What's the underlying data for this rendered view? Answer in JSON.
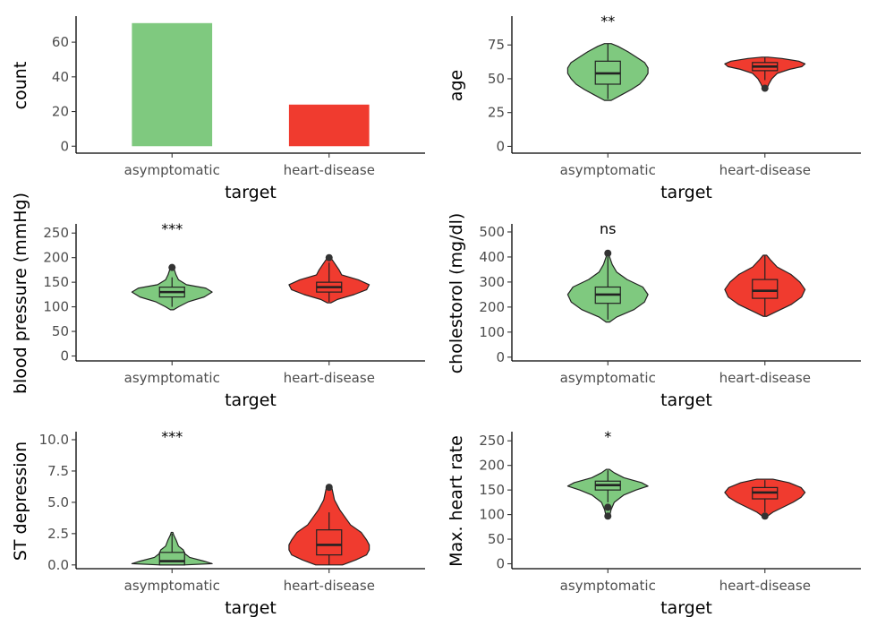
{
  "colors": {
    "asymptomatic": "#7fc97f",
    "heart-disease": "#f03b2f",
    "outline": "#222222"
  },
  "chart_data": [
    {
      "id": "count",
      "type": "bar",
      "xlabel": "target",
      "ylabel": "count",
      "categories": [
        "asymptomatic",
        "heart-disease"
      ],
      "values": [
        71,
        24
      ],
      "ylim": [
        -4,
        74
      ],
      "yticks": [
        0,
        20,
        40,
        60
      ],
      "ytick_labels": [
        "0",
        "20",
        "40",
        "60"
      ],
      "significance": ""
    },
    {
      "id": "age",
      "type": "violin",
      "xlabel": "target",
      "ylabel": "age",
      "categories": [
        "asymptomatic",
        "heart-disease"
      ],
      "ylim": [
        -5,
        95
      ],
      "yticks": [
        0,
        25,
        50,
        75
      ],
      "ytick_labels": [
        "0",
        "25",
        "50",
        "75"
      ],
      "significance": "**",
      "groups": [
        {
          "name": "asymptomatic",
          "q1": 46,
          "median": 54,
          "q3": 63,
          "whisker_low": 35,
          "whisker_high": 76,
          "outliers": [],
          "violin": [
            [
              34,
              0.02
            ],
            [
              38,
              0.08
            ],
            [
              42,
              0.14
            ],
            [
              46,
              0.19
            ],
            [
              50,
              0.22
            ],
            [
              54,
              0.24
            ],
            [
              58,
              0.24
            ],
            [
              62,
              0.22
            ],
            [
              66,
              0.17
            ],
            [
              70,
              0.12
            ],
            [
              74,
              0.06
            ],
            [
              76,
              0.02
            ]
          ]
        },
        {
          "name": "heart-disease",
          "q1": 56,
          "median": 59,
          "q3": 62,
          "whisker_low": 49,
          "whisker_high": 66,
          "outliers": [
            43
          ],
          "violin": [
            [
              42,
              0.02
            ],
            [
              46,
              0.05
            ],
            [
              50,
              0.09
            ],
            [
              54,
              0.16
            ],
            [
              57,
              0.32
            ],
            [
              59,
              0.48
            ],
            [
              61,
              0.52
            ],
            [
              63,
              0.44
            ],
            [
              65,
              0.22
            ],
            [
              66,
              0.04
            ]
          ]
        }
      ]
    },
    {
      "id": "blood-pressure",
      "type": "violin",
      "xlabel": "target",
      "ylabel": "blood pressure (mmHg)",
      "categories": [
        "asymptomatic",
        "heart-disease"
      ],
      "ylim": [
        -10,
        265
      ],
      "yticks": [
        0,
        50,
        100,
        150,
        200,
        250
      ],
      "ytick_labels": [
        "0",
        "50",
        "100",
        "150",
        "200",
        "250"
      ],
      "significance": "***",
      "groups": [
        {
          "name": "asymptomatic",
          "q1": 120,
          "median": 130,
          "q3": 140,
          "whisker_low": 100,
          "whisker_high": 160,
          "outliers": [
            180
          ],
          "violin": [
            [
              94,
              0.02
            ],
            [
              100,
              0.08
            ],
            [
              110,
              0.2
            ],
            [
              120,
              0.4
            ],
            [
              130,
              0.5
            ],
            [
              138,
              0.42
            ],
            [
              145,
              0.18
            ],
            [
              155,
              0.08
            ],
            [
              165,
              0.05
            ],
            [
              175,
              0.03
            ],
            [
              180,
              0.01
            ]
          ]
        },
        {
          "name": "heart-disease",
          "q1": 130,
          "median": 140,
          "q3": 150,
          "whisker_low": 110,
          "whisker_high": 190,
          "outliers": [
            200
          ],
          "violin": [
            [
              108,
              0.02
            ],
            [
              115,
              0.1
            ],
            [
              125,
              0.3
            ],
            [
              135,
              0.45
            ],
            [
              145,
              0.48
            ],
            [
              155,
              0.35
            ],
            [
              165,
              0.15
            ],
            [
              175,
              0.12
            ],
            [
              185,
              0.08
            ],
            [
              195,
              0.04
            ],
            [
              200,
              0.01
            ]
          ]
        }
      ]
    },
    {
      "id": "cholesterol",
      "type": "violin",
      "xlabel": "target",
      "ylabel": "cholestorol (mg/dl)",
      "categories": [
        "asymptomatic",
        "heart-disease"
      ],
      "ylim": [
        -15,
        525
      ],
      "yticks": [
        0,
        100,
        200,
        300,
        400,
        500
      ],
      "ytick_labels": [
        "0",
        "100",
        "200",
        "300",
        "400",
        "500"
      ],
      "significance": "ns",
      "groups": [
        {
          "name": "asymptomatic",
          "q1": 215,
          "median": 250,
          "q3": 280,
          "whisker_low": 150,
          "whisker_high": 400,
          "outliers": [
            415
          ],
          "violin": [
            [
              140,
              0.02
            ],
            [
              160,
              0.1
            ],
            [
              190,
              0.3
            ],
            [
              220,
              0.42
            ],
            [
              250,
              0.46
            ],
            [
              280,
              0.4
            ],
            [
              310,
              0.22
            ],
            [
              340,
              0.1
            ],
            [
              370,
              0.05
            ],
            [
              400,
              0.02
            ],
            [
              418,
              0.01
            ]
          ]
        },
        {
          "name": "heart-disease",
          "q1": 235,
          "median": 265,
          "q3": 310,
          "whisker_low": 165,
          "whisker_high": 405,
          "outliers": [],
          "violin": [
            [
              163,
              0.02
            ],
            [
              180,
              0.12
            ],
            [
              210,
              0.3
            ],
            [
              240,
              0.42
            ],
            [
              270,
              0.46
            ],
            [
              300,
              0.4
            ],
            [
              330,
              0.3
            ],
            [
              360,
              0.14
            ],
            [
              390,
              0.06
            ],
            [
              407,
              0.02
            ]
          ]
        }
      ]
    },
    {
      "id": "st-depression",
      "type": "violin",
      "xlabel": "target",
      "ylabel": "ST depression",
      "categories": [
        "asymptomatic",
        "heart-disease"
      ],
      "ylim": [
        -0.3,
        10.5
      ],
      "yticks": [
        0,
        2.5,
        5,
        7.5,
        10
      ],
      "ytick_labels": [
        "0.0",
        "2.5",
        "5.0",
        "7.5",
        "10.0"
      ],
      "significance": "***",
      "groups": [
        {
          "name": "asymptomatic",
          "q1": 0,
          "median": 0.3,
          "q3": 1.0,
          "whisker_low": 0,
          "whisker_high": 2.5,
          "outliers": [],
          "violin": [
            [
              0,
              0.15
            ],
            [
              0.1,
              0.5
            ],
            [
              0.3,
              0.4
            ],
            [
              0.6,
              0.22
            ],
            [
              0.9,
              0.16
            ],
            [
              1.2,
              0.14
            ],
            [
              1.5,
              0.08
            ],
            [
              2.0,
              0.05
            ],
            [
              2.4,
              0.02
            ],
            [
              2.6,
              0.01
            ]
          ]
        },
        {
          "name": "heart-disease",
          "q1": 0.8,
          "median": 1.6,
          "q3": 2.8,
          "whisker_low": 0,
          "whisker_high": 4.2,
          "outliers": [
            6.2
          ],
          "violin": [
            [
              0,
              0.05
            ],
            [
              0.4,
              0.1
            ],
            [
              0.8,
              0.14
            ],
            [
              1.2,
              0.15
            ],
            [
              1.6,
              0.15
            ],
            [
              2.0,
              0.14
            ],
            [
              2.6,
              0.12
            ],
            [
              3.2,
              0.08
            ],
            [
              3.8,
              0.06
            ],
            [
              4.4,
              0.04
            ],
            [
              5.2,
              0.02
            ],
            [
              6.2,
              0.01
            ]
          ]
        }
      ]
    },
    {
      "id": "max-heart-rate",
      "type": "violin",
      "xlabel": "target",
      "ylabel": "Max. heart rate",
      "categories": [
        "asymptomatic",
        "heart-disease"
      ],
      "ylim": [
        -10,
        265
      ],
      "yticks": [
        0,
        50,
        100,
        150,
        200,
        250
      ],
      "ytick_labels": [
        "0",
        "50",
        "100",
        "150",
        "200",
        "250"
      ],
      "significance": "*",
      "groups": [
        {
          "name": "asymptomatic",
          "q1": 150,
          "median": 160,
          "q3": 168,
          "whisker_low": 125,
          "whisker_high": 190,
          "outliers": [
            97,
            115
          ],
          "violin": [
            [
              95,
              0.02
            ],
            [
              110,
              0.04
            ],
            [
              125,
              0.08
            ],
            [
              140,
              0.2
            ],
            [
              150,
              0.35
            ],
            [
              158,
              0.5
            ],
            [
              165,
              0.42
            ],
            [
              175,
              0.2
            ],
            [
              185,
              0.08
            ],
            [
              192,
              0.02
            ]
          ]
        },
        {
          "name": "heart-disease",
          "q1": 132,
          "median": 145,
          "q3": 155,
          "whisker_low": 105,
          "whisker_high": 170,
          "outliers": [
            97
          ],
          "violin": [
            [
              96,
              0.02
            ],
            [
              105,
              0.08
            ],
            [
              115,
              0.18
            ],
            [
              125,
              0.28
            ],
            [
              135,
              0.36
            ],
            [
              145,
              0.4
            ],
            [
              155,
              0.36
            ],
            [
              165,
              0.24
            ],
            [
              172,
              0.08
            ]
          ]
        }
      ]
    }
  ]
}
